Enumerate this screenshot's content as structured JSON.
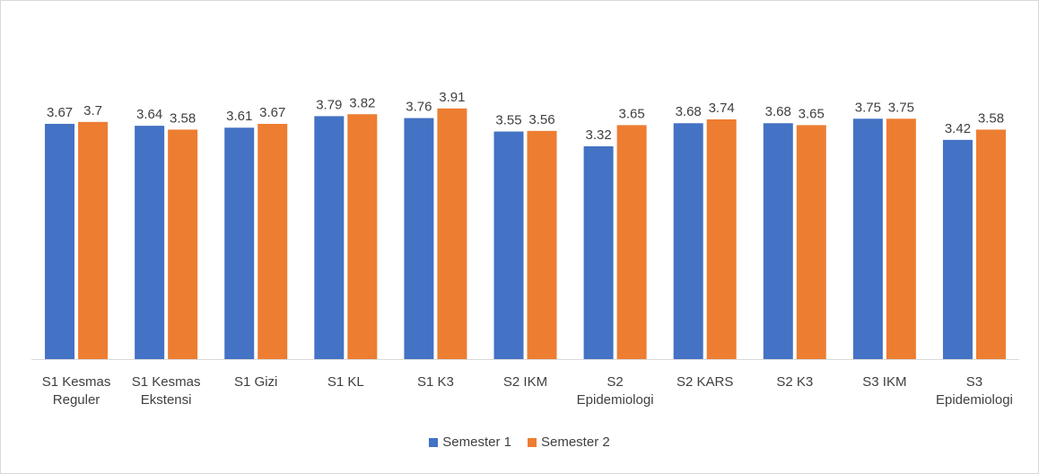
{
  "chart_data": {
    "type": "bar",
    "categories": [
      [
        "S1 Kesmas",
        "Reguler"
      ],
      [
        "S1 Kesmas",
        "Ekstensi"
      ],
      [
        "S1 Gizi"
      ],
      [
        "S1 KL"
      ],
      [
        "S1 K3"
      ],
      [
        "S2 IKM"
      ],
      [
        "S2",
        "Epidemiologi"
      ],
      [
        "S2 KARS"
      ],
      [
        "S2 K3"
      ],
      [
        "S3 IKM"
      ],
      [
        "S3",
        "Epidemiologi"
      ]
    ],
    "series": [
      {
        "name": "Semester 1",
        "color": "#4472c4",
        "values": [
          3.67,
          3.64,
          3.61,
          3.79,
          3.76,
          3.55,
          3.32,
          3.68,
          3.68,
          3.75,
          3.42
        ],
        "labels": [
          "3.67",
          "3.64",
          "3.61",
          "3.79",
          "3.76",
          "3.55",
          "3.32",
          "3.68",
          "3.68",
          "3.75",
          "3.42"
        ]
      },
      {
        "name": "Semester 2",
        "color": "#ed7d31",
        "values": [
          3.7,
          3.58,
          3.67,
          3.82,
          3.91,
          3.56,
          3.65,
          3.74,
          3.65,
          3.75,
          3.58
        ],
        "labels": [
          "3.7",
          "3.58",
          "3.67",
          "3.82",
          "3.91",
          "3.56",
          "3.65",
          "3.74",
          "3.65",
          "3.75",
          "3.58"
        ]
      }
    ],
    "ylim": [
      0,
      4.5
    ],
    "title": "",
    "xlabel": "",
    "ylabel": "",
    "grid": false,
    "legend_position": "bottom"
  }
}
